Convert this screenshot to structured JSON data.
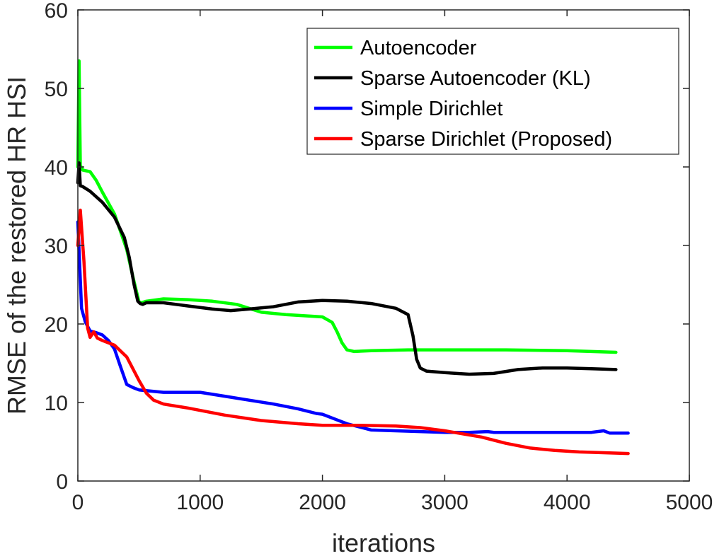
{
  "chart_data": {
    "type": "line",
    "xlabel": "iterations",
    "ylabel": "RMSE of the restored HR HSI",
    "xlim": [
      0,
      5000
    ],
    "ylim": [
      0,
      60
    ],
    "xticks": [
      0,
      1000,
      2000,
      3000,
      4000,
      5000
    ],
    "yticks": [
      0,
      10,
      20,
      30,
      40,
      50,
      60
    ],
    "grid": false,
    "legend_position": "top-right",
    "series": [
      {
        "name": "Autoencoder",
        "color": "#00ff00",
        "x": [
          0,
          10,
          20,
          40,
          100,
          150,
          200,
          300,
          400,
          450,
          500,
          520,
          560,
          700,
          900,
          1100,
          1300,
          1500,
          1700,
          1900,
          2000,
          2080,
          2120,
          2160,
          2200,
          2260,
          2400,
          2700,
          3000,
          3500,
          4000,
          4400
        ],
        "y": [
          40,
          53.5,
          40.2,
          39.6,
          39.4,
          38.3,
          36.8,
          34,
          29.5,
          26,
          22.8,
          22.7,
          22.9,
          23.2,
          23.1,
          22.9,
          22.5,
          21.5,
          21.2,
          21.0,
          20.9,
          20.2,
          19,
          17.6,
          16.7,
          16.5,
          16.6,
          16.7,
          16.7,
          16.7,
          16.6,
          16.4
        ]
      },
      {
        "name": "Sparse Autoencoder (KL)",
        "color": "#000000",
        "x": [
          0,
          10,
          20,
          40,
          100,
          200,
          300,
          380,
          420,
          460,
          490,
          510,
          530,
          560,
          700,
          900,
          1100,
          1250,
          1400,
          1600,
          1800,
          2000,
          2200,
          2400,
          2600,
          2700,
          2740,
          2770,
          2800,
          2850,
          3000,
          3200,
          3400,
          3600,
          3800,
          4000,
          4200,
          4400
        ],
        "y": [
          38,
          40.5,
          37.6,
          37.5,
          36.9,
          35.5,
          33.6,
          31,
          28.5,
          25,
          22.9,
          22.6,
          22.5,
          22.7,
          22.7,
          22.3,
          21.9,
          21.7,
          21.9,
          22.2,
          22.8,
          23.0,
          22.9,
          22.6,
          22.0,
          21.2,
          18.5,
          15.5,
          14.4,
          14.0,
          13.8,
          13.6,
          13.7,
          14.2,
          14.4,
          14.4,
          14.3,
          14.2
        ]
      },
      {
        "name": "Simple Dirichlet",
        "color": "#0000ff",
        "x": [
          0,
          30,
          60,
          100,
          150,
          200,
          250,
          300,
          350,
          400,
          450,
          500,
          700,
          1000,
          1200,
          1400,
          1600,
          1800,
          1950,
          2000,
          2100,
          2200,
          2300,
          2400,
          2600,
          2800,
          3000,
          3200,
          3350,
          3400,
          3600,
          3800,
          4000,
          4200,
          4300,
          4350,
          4500
        ],
        "y": [
          33,
          22,
          20.3,
          19.1,
          18.9,
          18.6,
          17.9,
          16.8,
          14.5,
          12.3,
          11.9,
          11.6,
          11.3,
          11.3,
          10.8,
          10.3,
          9.8,
          9.2,
          8.6,
          8.5,
          7.9,
          7.3,
          6.9,
          6.5,
          6.4,
          6.3,
          6.2,
          6.2,
          6.3,
          6.2,
          6.2,
          6.2,
          6.2,
          6.2,
          6.4,
          6.1,
          6.1
        ]
      },
      {
        "name": "Sparse Dirichlet (Proposed)",
        "color": "#ff0000",
        "x": [
          0,
          20,
          50,
          80,
          100,
          130,
          160,
          200,
          300,
          400,
          500,
          560,
          620,
          700,
          900,
          1200,
          1500,
          1800,
          2000,
          2300,
          2600,
          2800,
          3000,
          3300,
          3500,
          3700,
          3900,
          4100,
          4300,
          4500
        ],
        "y": [
          30,
          34.5,
          28,
          19.5,
          18.3,
          19,
          18.2,
          17.9,
          17.3,
          15.8,
          12.8,
          11.2,
          10.3,
          9.8,
          9.3,
          8.4,
          7.7,
          7.3,
          7.1,
          7.1,
          7.0,
          6.8,
          6.4,
          5.6,
          4.8,
          4.2,
          3.9,
          3.7,
          3.6,
          3.5
        ]
      }
    ]
  }
}
